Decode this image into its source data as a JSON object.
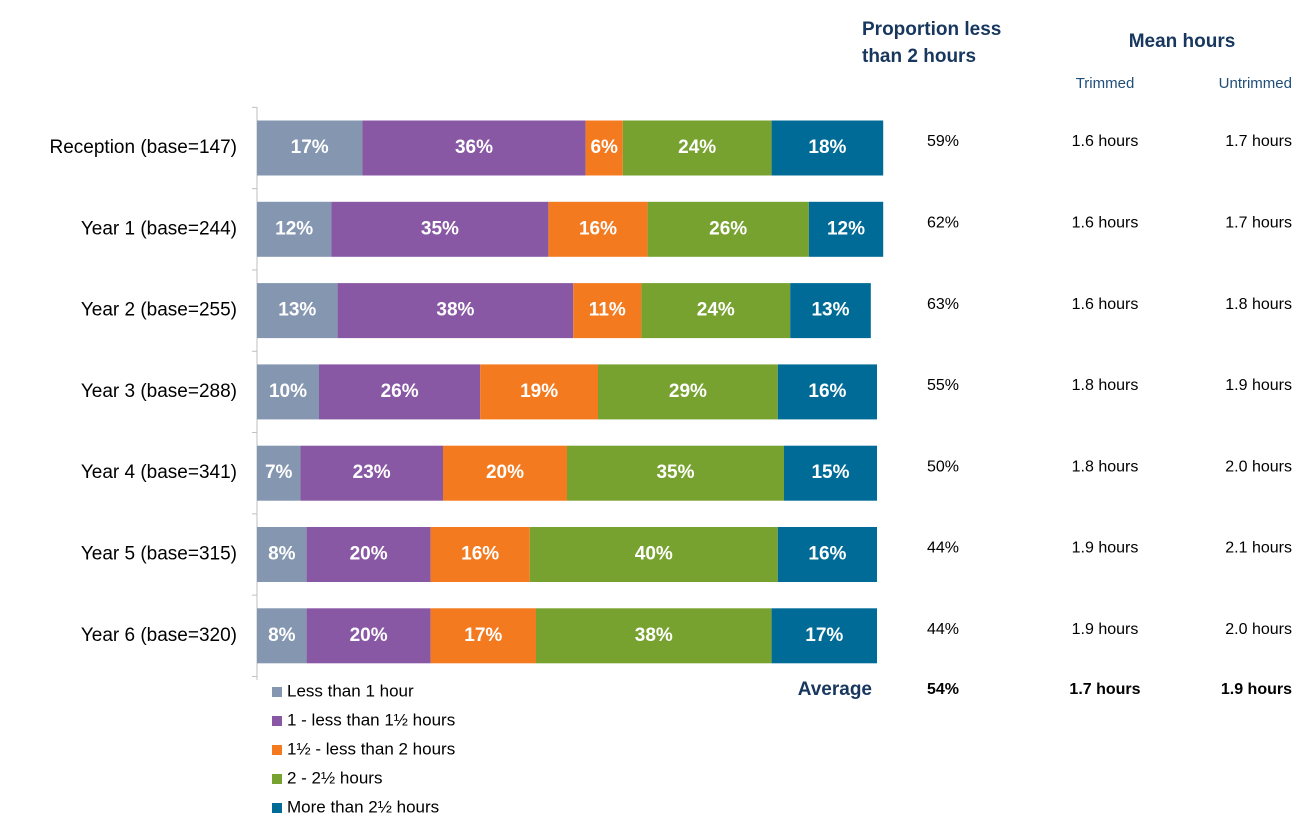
{
  "chart_data": {
    "type": "stacked_bar_horizontal",
    "categories": [
      "Reception (base=147)",
      "Year 1 (base=244)",
      "Year 2 (base=255)",
      "Year 3 (base=288)",
      "Year 4 (base=341)",
      "Year 5 (base=315)",
      "Year 6 (base=320)"
    ],
    "xlim": [
      0,
      100
    ],
    "legend": "bottom-left",
    "series": [
      {
        "name": "Less than 1 hour",
        "color": "#8496b0",
        "values": [
          17,
          12,
          13,
          10,
          7,
          8,
          8
        ],
        "value_labels": [
          "17%",
          "12%",
          "13%",
          "10%",
          "7%",
          "8%",
          "8%"
        ]
      },
      {
        "name": "1 - less than 1½ hours",
        "color": "#8858a4",
        "values": [
          36,
          35,
          38,
          26,
          23,
          20,
          20
        ],
        "value_labels": [
          "36%",
          "35%",
          "38%",
          "26%",
          "23%",
          "20%",
          "20%"
        ]
      },
      {
        "name": "1½ - less than 2 hours",
        "color": "#f47a20",
        "values": [
          6,
          16,
          11,
          19,
          20,
          16,
          17
        ],
        "value_labels": [
          "6%",
          "16%",
          "11%",
          "19%",
          "20%",
          "16%",
          "17%"
        ]
      },
      {
        "name": "2 - 2½ hours",
        "color": "#77a22f",
        "values": [
          24,
          26,
          24,
          29,
          35,
          40,
          38
        ],
        "value_labels": [
          "24%",
          "26%",
          "24%",
          "29%",
          "35%",
          "40%",
          "38%"
        ]
      },
      {
        "name": "More than 2½ hours",
        "color": "#006b96",
        "values": [
          18,
          12,
          13,
          16,
          15,
          16,
          17
        ],
        "value_labels": [
          "18%",
          "12%",
          "13%",
          "16%",
          "15%",
          "16%",
          "17%"
        ]
      }
    ]
  },
  "table": {
    "proportion_header": [
      "Proportion less",
      "than 2 hours"
    ],
    "mean_header": "Mean hours",
    "trimmed_header": "Trimmed",
    "untrimmed_header": "Untrimmed",
    "rows": [
      [
        "59%",
        "1.6 hours",
        "1.7 hours"
      ],
      [
        "62%",
        "1.6 hours",
        "1.7 hours"
      ],
      [
        "63%",
        "1.6 hours",
        "1.8 hours"
      ],
      [
        "55%",
        "1.8 hours",
        "1.9 hours"
      ],
      [
        "50%",
        "1.8 hours",
        "2.0 hours"
      ],
      [
        "44%",
        "1.9 hours",
        "2.1 hours"
      ],
      [
        "44%",
        "1.9 hours",
        "2.0 hours"
      ]
    ],
    "average_label": "Average",
    "average": [
      "54%",
      "1.7 hours",
      "1.9 hours"
    ]
  }
}
